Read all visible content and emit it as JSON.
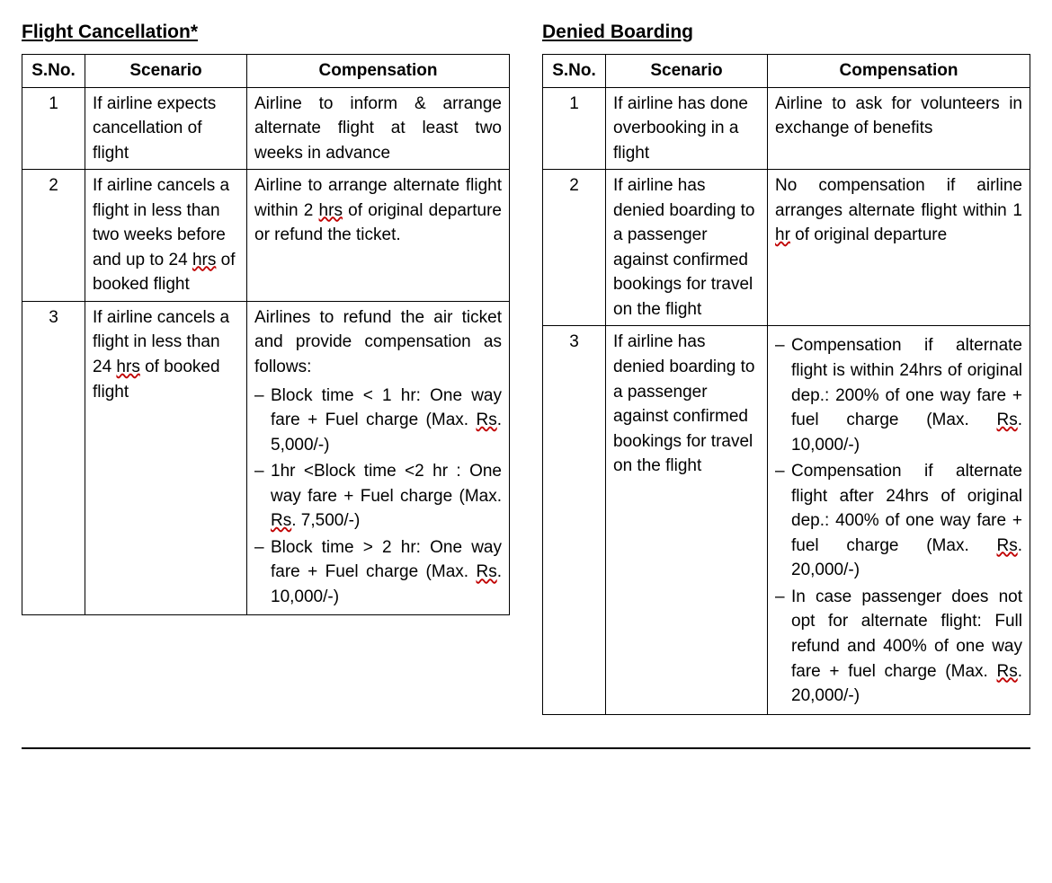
{
  "left": {
    "title": "Flight Cancellation*",
    "columns": [
      "S.No.",
      "Scenario",
      "Compensation"
    ],
    "rows": [
      {
        "sno": "1",
        "scenario": "If airline expects cancellation of flight",
        "comp_text": "Airline to inform & arrange alternate flight at least two weeks in advance",
        "comp_bullets": []
      },
      {
        "sno": "2",
        "scenario_parts": [
          {
            "t": "If airline cancels a flight in less than two weeks before and up to 24 "
          },
          {
            "t": "hrs",
            "wavy": true
          },
          {
            "t": " of booked flight"
          }
        ],
        "comp_parts": [
          {
            "t": "Airline to arrange alternate flight within 2 "
          },
          {
            "t": "hrs",
            "wavy": true
          },
          {
            "t": " of original departure or refund the ticket."
          }
        ],
        "comp_bullets": []
      },
      {
        "sno": "3",
        "scenario_parts": [
          {
            "t": "If airline cancels a flight in less than 24 "
          },
          {
            "t": "hrs",
            "wavy": true
          },
          {
            "t": " of booked flight"
          }
        ],
        "comp_text": "Airlines to refund the air ticket and provide compensation as follows:",
        "comp_bullets": [
          [
            {
              "t": "Block time < 1 hr: One way fare + Fuel charge (Max. "
            },
            {
              "t": "Rs",
              "wavy": true
            },
            {
              "t": ". 5,000/-)"
            }
          ],
          [
            {
              "t": "1hr <Block time <2 hr : One way fare + Fuel charge (Max. "
            },
            {
              "t": "Rs",
              "wavy": true
            },
            {
              "t": ". 7,500/-)"
            }
          ],
          [
            {
              "t": "Block time > 2 hr: One way fare + Fuel charge (Max. "
            },
            {
              "t": "Rs",
              "wavy": true
            },
            {
              "t": ". 10,000/-)"
            }
          ]
        ]
      }
    ]
  },
  "right": {
    "title": "Denied Boarding",
    "columns": [
      "S.No.",
      "Scenario",
      "Compensation"
    ],
    "rows": [
      {
        "sno": "1",
        "scenario": "If airline has done overbooking in a flight",
        "comp_text": "Airline to ask for volunteers in exchange of benefits",
        "comp_bullets": []
      },
      {
        "sno": "2",
        "scenario": "If airline has denied boarding to a passenger against confirmed bookings for travel on the flight",
        "comp_parts": [
          {
            "t": "No compensation if airline arranges alternate flight within 1 "
          },
          {
            "t": "hr",
            "wavy": true
          },
          {
            "t": " of original departure"
          }
        ],
        "comp_bullets": []
      },
      {
        "sno": "3",
        "scenario": "If airline has denied boarding to a passenger against confirmed bookings for travel on the flight",
        "comp_text": "",
        "comp_bullets": [
          [
            {
              "t": "Compensation if alternate flight is within 24hrs of original dep.: 200% of one way fare + fuel charge (Max. "
            },
            {
              "t": "Rs",
              "wavy": true
            },
            {
              "t": ". 10,000/-)"
            }
          ],
          [
            {
              "t": "Compensation if alternate flight after 24hrs of original dep.: 400% of one way fare + fuel charge (Max. "
            },
            {
              "t": "Rs",
              "wavy": true
            },
            {
              "t": ". 20,000/-)"
            }
          ],
          [
            {
              "t": "In case passenger does not opt for alternate flight: Full refund and 400% of one way fare + fuel charge (Max. "
            },
            {
              "t": "Rs",
              "wavy": true
            },
            {
              "t": ". 20,000/-)"
            }
          ]
        ]
      }
    ]
  }
}
